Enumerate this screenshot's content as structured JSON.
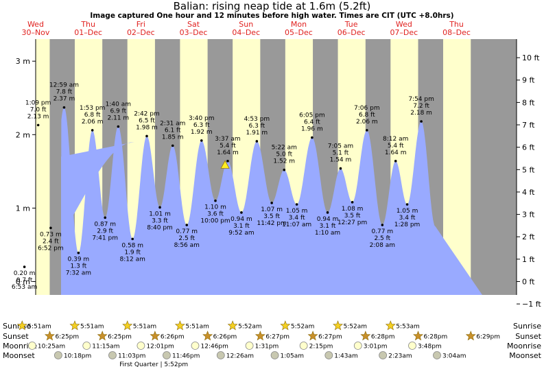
{
  "title": "Balian: rising  neap tide at 1.6m (5.2ft)",
  "subtitle": "Image captured One hour and 12 minutes before high water. Times are CIT (UTC +8.0hrs)",
  "colors": {
    "tide": "#99aaff",
    "day": "#ffffcc",
    "night": "#999999",
    "daytext": "#e0201e"
  },
  "chart_data": {
    "type": "area",
    "ylim_m": [
      -0.25,
      3.3
    ],
    "yticks_m": [
      {
        "v": 0,
        "label": "0 m"
      },
      {
        "v": 1,
        "label": "1 m"
      },
      {
        "v": 2,
        "label": "2 m"
      },
      {
        "v": 3,
        "label": "3 m"
      }
    ],
    "yticks_ft": [
      {
        "v": -1,
        "label": "−1 ft"
      },
      {
        "v": 0,
        "label": "0 ft"
      },
      {
        "v": 1,
        "label": "1 ft"
      },
      {
        "v": 2,
        "label": "2 ft"
      },
      {
        "v": 3,
        "label": "3 ft"
      },
      {
        "v": 4,
        "label": "4 ft"
      },
      {
        "v": 5,
        "label": "5 ft"
      },
      {
        "v": 6,
        "label": "6 ft"
      },
      {
        "v": 7,
        "label": "7 ft"
      },
      {
        "v": 8,
        "label": "8 ft"
      },
      {
        "v": 9,
        "label": "9 ft"
      },
      {
        "v": 10,
        "label": "10 ft"
      }
    ],
    "days": [
      {
        "name": "Wed",
        "date": "30–Nov"
      },
      {
        "name": "Thu",
        "date": "01–Dec"
      },
      {
        "name": "Fri",
        "date": "02–Dec"
      },
      {
        "name": "Sat",
        "date": "03–Dec"
      },
      {
        "name": "Sun",
        "date": "04–Dec"
      },
      {
        "name": "Mon",
        "date": "05–Dec"
      },
      {
        "name": "Tue",
        "date": "06–Dec"
      },
      {
        "name": "Wed",
        "date": "07–Dec"
      },
      {
        "name": "Thu",
        "date": "08–Dec"
      }
    ],
    "tides": [
      {
        "day": 0,
        "time": "6:53 am",
        "m": "0.20 m",
        "ft": "0.7 ft",
        "v": 0.2,
        "type": "low"
      },
      {
        "day": 0,
        "time": "1:09 pm",
        "m": "2.13 m",
        "ft": "7.0 ft",
        "v": 2.13,
        "type": "high"
      },
      {
        "day": 0,
        "time": "6:52 pm",
        "m": "0.73 m",
        "ft": "2.4 ft",
        "v": 0.73,
        "type": "low"
      },
      {
        "day": 1,
        "time": "12:59 am",
        "m": "2.37 m",
        "ft": "7.8 ft",
        "v": 2.37,
        "type": "high"
      },
      {
        "day": 1,
        "time": "7:32 am",
        "m": "0.39 m",
        "ft": "1.3 ft",
        "v": 0.39,
        "type": "low"
      },
      {
        "day": 1,
        "time": "1:53 pm",
        "m": "2.06 m",
        "ft": "6.8 ft",
        "v": 2.06,
        "type": "high"
      },
      {
        "day": 1,
        "time": "7:41 pm",
        "m": "0.87 m",
        "ft": "2.9 ft",
        "v": 0.87,
        "type": "low"
      },
      {
        "day": 2,
        "time": "1:40 am",
        "m": "2.11 m",
        "ft": "6.9 ft",
        "v": 2.11,
        "type": "high"
      },
      {
        "day": 2,
        "time": "8:12 am",
        "m": "0.58 m",
        "ft": "1.9 ft",
        "v": 0.58,
        "type": "low"
      },
      {
        "day": 2,
        "time": "2:42 pm",
        "m": "1.98 m",
        "ft": "6.5 ft",
        "v": 1.98,
        "type": "high"
      },
      {
        "day": 2,
        "time": "8:40 pm",
        "m": "1.01 m",
        "ft": "3.3 ft",
        "v": 1.01,
        "type": "low"
      },
      {
        "day": 3,
        "time": "2:31 am",
        "m": "1.85 m",
        "ft": "6.1 ft",
        "v": 1.85,
        "type": "high"
      },
      {
        "day": 3,
        "time": "8:56 am",
        "m": "0.77 m",
        "ft": "2.5 ft",
        "v": 0.77,
        "type": "low"
      },
      {
        "day": 3,
        "time": "3:40 pm",
        "m": "1.92 m",
        "ft": "6.3 ft",
        "v": 1.92,
        "type": "high"
      },
      {
        "day": 3,
        "time": "10:00 pm",
        "m": "1.10 m",
        "ft": "3.6 ft",
        "v": 1.1,
        "type": "low"
      },
      {
        "day": 4,
        "time": "3:37 am",
        "m": "1.64 m",
        "ft": "5.4 ft",
        "v": 1.64,
        "type": "high"
      },
      {
        "day": 4,
        "time": "9:52 am",
        "m": "0.94 m",
        "ft": "3.1 ft",
        "v": 0.94,
        "type": "low"
      },
      {
        "day": 4,
        "time": "4:53 pm",
        "m": "1.91 m",
        "ft": "6.3 ft",
        "v": 1.91,
        "type": "high"
      },
      {
        "day": 4,
        "time": "11:42 pm",
        "m": "1.07 m",
        "ft": "3.5 ft",
        "v": 1.07,
        "type": "low"
      },
      {
        "day": 5,
        "time": "5:22 am",
        "m": "1.52 m",
        "ft": "5.0 ft",
        "v": 1.52,
        "type": "high"
      },
      {
        "day": 5,
        "time": "11:07 am",
        "m": "1.05 m",
        "ft": "3.4 ft",
        "v": 1.05,
        "type": "low"
      },
      {
        "day": 5,
        "time": "6:05 pm",
        "m": "1.96 m",
        "ft": "6.4 ft",
        "v": 1.96,
        "type": "high"
      },
      {
        "day": 6,
        "time": "1:10 am",
        "m": "0.94 m",
        "ft": "3.1 ft",
        "v": 0.94,
        "type": "low"
      },
      {
        "day": 6,
        "time": "7:05 am",
        "m": "1.54 m",
        "ft": "5.1 ft",
        "v": 1.54,
        "type": "high"
      },
      {
        "day": 6,
        "time": "12:27 pm",
        "m": "1.08 m",
        "ft": "3.5 ft",
        "v": 1.08,
        "type": "low"
      },
      {
        "day": 6,
        "time": "7:06 pm",
        "m": "2.06 m",
        "ft": "6.8 ft",
        "v": 2.06,
        "type": "high"
      },
      {
        "day": 7,
        "time": "2:08 am",
        "m": "0.77 m",
        "ft": "2.5 ft",
        "v": 0.77,
        "type": "low"
      },
      {
        "day": 7,
        "time": "8:12 am",
        "m": "1.64 m",
        "ft": "5.4 ft",
        "v": 1.64,
        "type": "high"
      },
      {
        "day": 7,
        "time": "1:28 pm",
        "m": "1.05 m",
        "ft": "3.4 ft",
        "v": 1.05,
        "type": "low"
      },
      {
        "day": 7,
        "time": "7:54 pm",
        "m": "2.18 m",
        "ft": "7.2 ft",
        "v": 2.18,
        "type": "high"
      }
    ],
    "current": {
      "day": 4,
      "time": "2:25 am",
      "v": 1.57
    }
  },
  "rows": {
    "sunrise": {
      "label": "Sunrise",
      "times": [
        "5:51am",
        "5:51am",
        "5:51am",
        "5:51am",
        "5:52am",
        "5:52am",
        "5:52am",
        "5:53am"
      ]
    },
    "sunset": {
      "label": "Sunset",
      "times": [
        "6:25pm",
        "6:25pm",
        "6:26pm",
        "6:26pm",
        "6:27pm",
        "6:27pm",
        "6:28pm",
        "6:28pm",
        "6:29pm"
      ]
    },
    "moonrise": {
      "label": "Moonrise",
      "times": [
        "10:25am",
        "11:15am",
        "12:01pm",
        "12:46pm",
        "1:31pm",
        "2:15pm",
        "3:01pm",
        "3:48pm"
      ]
    },
    "moonset": {
      "label": "Moonset",
      "times": [
        "10:18pm",
        "11:03pm",
        "11:46pm",
        "12:26am",
        "1:05am",
        "1:43am",
        "2:23am",
        "3:04am"
      ]
    }
  },
  "moon_phase": "First Quarter | 5:52pm"
}
